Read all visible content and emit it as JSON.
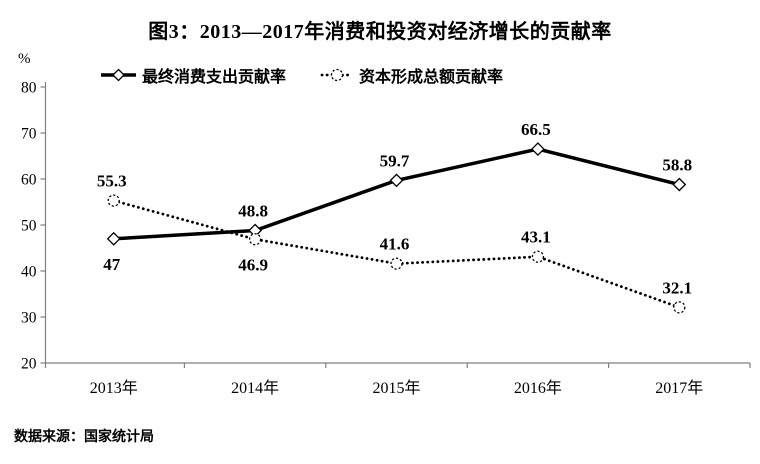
{
  "figure": {
    "title": "图3：2013—2017年消费和投资对经济增长的贡献率",
    "y_axis_unit": "%",
    "source": "数据来源：国家统计局"
  },
  "chart_data": {
    "type": "line",
    "title": "图3：2013—2017年消费和投资对经济增长的贡献率",
    "categories": [
      "2013年",
      "2014年",
      "2015年",
      "2016年",
      "2017年"
    ],
    "series": [
      {
        "key": "consumption",
        "name": "最终消费支出贡献率",
        "values": [
          47,
          48.8,
          59.7,
          66.5,
          58.8
        ],
        "line_style": "solid",
        "marker": "diamond",
        "label_positions": [
          "below",
          "above",
          "above",
          "above",
          "above"
        ]
      },
      {
        "key": "capital-formation",
        "name": "资本形成总额贡献率",
        "values": [
          55.3,
          46.9,
          41.6,
          43.1,
          32.1
        ],
        "line_style": "dotted",
        "marker": "circle",
        "label_positions": [
          "above",
          "below",
          "above",
          "above",
          "above"
        ]
      }
    ],
    "ylabel": "%",
    "ylim": [
      20,
      80
    ],
    "ytick_step": 10,
    "yticks": [
      80,
      70,
      60,
      50,
      40,
      30,
      20
    ],
    "grid": false,
    "legend_position": "top",
    "source": "数据来源：国家统计局",
    "colors": {
      "line": "#000000",
      "axis": "#7f7f7f",
      "text": "#000000",
      "background": "#ffffff"
    }
  }
}
